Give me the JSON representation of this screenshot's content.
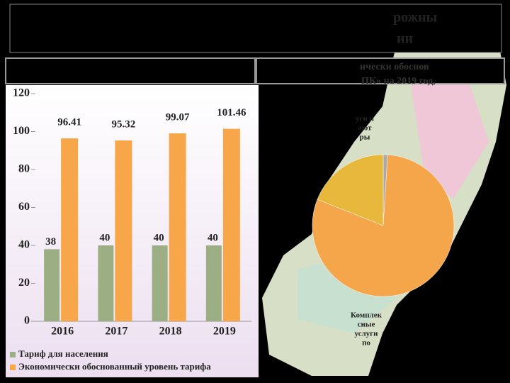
{
  "slide": {
    "title_lines": [
      "рожны",
      "ии"
    ],
    "header_lines": [
      "ически обоснов",
      "ПК» на 2019 год, "
    ]
  },
  "chart_data": [
    {
      "type": "bar",
      "categories": [
        "2016",
        "2017",
        "2018",
        "2019"
      ],
      "series": [
        {
          "name": "Тариф для населения",
          "color": "#9caf84",
          "values": [
            38,
            40,
            40,
            40
          ]
        },
        {
          "name": "Экономически обоснованный уровень тарифа",
          "color": "#f7a64a",
          "values": [
            96.41,
            95.32,
            99.07,
            101.46
          ]
        }
      ],
      "ylim": [
        0,
        120
      ],
      "yticks": [
        0,
        20,
        40,
        60,
        80,
        100,
        120
      ],
      "grid": false
    },
    {
      "type": "pie",
      "values": [
        1,
        80,
        19
      ],
      "colors": [
        "#a9a9a9",
        "#f5a54a",
        "#e8b83c"
      ],
      "labels": [
        [
          "уги и",
          "ают",
          "ры"
        ],
        [
          "Комплек",
          "сные",
          "услуги",
          "по"
        ],
        null
      ]
    }
  ]
}
